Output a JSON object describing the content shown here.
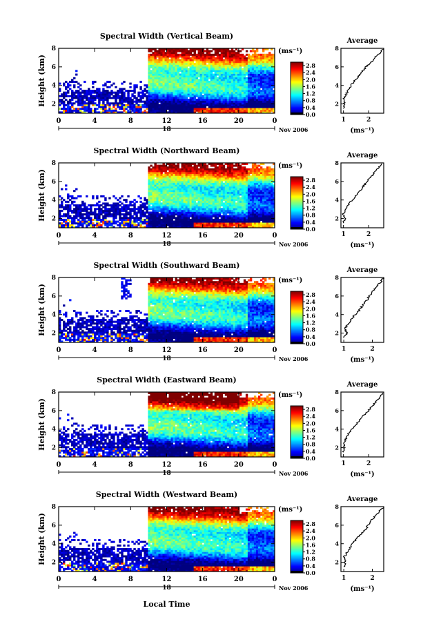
{
  "figure": {
    "colorbar_unit": "(ms⁻¹)",
    "avg_title": "Average",
    "avg_xlabel": "(ms⁻¹)",
    "date_label": "Nov 2006",
    "day_label": "18",
    "xlabel_bottom": "Local Time",
    "ylabel": "Height (km)"
  },
  "chart_data": [
    {
      "type": "heatmap",
      "title": "Spectral Width (Vertical Beam)",
      "ylabel": "Height (km)",
      "x_ticks": [
        "0",
        "4",
        "8",
        "12",
        "16",
        "20",
        "0"
      ],
      "y_ticks": [
        "2",
        "4",
        "6",
        "8"
      ],
      "xlim": [
        0,
        24
      ],
      "ylim": [
        1,
        8
      ],
      "colorbar_ticks": [
        "0.0",
        "0.4",
        "0.8",
        "1.2",
        "1.6",
        "2.0",
        "2.4",
        "2.8"
      ],
      "colorbar_range": [
        0,
        3
      ],
      "average_profile": {
        "title": "Average",
        "xlabel": "(ms⁻¹)",
        "xticks": [
          "1",
          "2"
        ],
        "xlim": [
          0.9,
          2.6
        ],
        "height": [
          1.5,
          2,
          2.5,
          3,
          3.5,
          4,
          4.5,
          5,
          5.5,
          6,
          6.5,
          7,
          7.5,
          8
        ],
        "width": [
          1.0,
          1.05,
          1.0,
          1.1,
          1.2,
          1.3,
          1.45,
          1.6,
          1.75,
          1.9,
          2.1,
          2.25,
          2.45,
          2.6
        ]
      }
    },
    {
      "type": "heatmap",
      "title": "Spectral Width (Northward Beam)",
      "ylabel": "Height (km)",
      "x_ticks": [
        "0",
        "4",
        "8",
        "12",
        "16",
        "20",
        "0"
      ],
      "y_ticks": [
        "2",
        "4",
        "6",
        "8"
      ],
      "xlim": [
        0,
        24
      ],
      "ylim": [
        1,
        8
      ],
      "colorbar_ticks": [
        "0.0",
        "0.4",
        "0.8",
        "1.2",
        "1.6",
        "2.0",
        "2.4",
        "2.8"
      ],
      "colorbar_range": [
        0,
        3
      ],
      "average_profile": {
        "title": "Average",
        "xlabel": "(ms⁻¹)",
        "xticks": [
          "1",
          "2"
        ],
        "xlim": [
          0.9,
          2.6
        ],
        "height": [
          1.5,
          2,
          2.5,
          3,
          3.5,
          4,
          4.5,
          5,
          5.5,
          6,
          6.5,
          7,
          7.5,
          8
        ],
        "width": [
          1.0,
          1.05,
          1.0,
          1.1,
          1.2,
          1.35,
          1.5,
          1.65,
          1.8,
          1.95,
          2.1,
          2.25,
          2.4,
          2.55
        ]
      }
    },
    {
      "type": "heatmap",
      "title": "Spectral Width (Southward Beam)",
      "ylabel": "Height (km)",
      "x_ticks": [
        "0",
        "4",
        "8",
        "12",
        "16",
        "20",
        "0"
      ],
      "y_ticks": [
        "2",
        "4",
        "6",
        "8"
      ],
      "xlim": [
        0,
        24
      ],
      "ylim": [
        1,
        8
      ],
      "colorbar_ticks": [
        "0.0",
        "0.4",
        "0.8",
        "1.2",
        "1.6",
        "2.0",
        "2.4",
        "2.8"
      ],
      "colorbar_range": [
        0,
        3
      ],
      "average_profile": {
        "title": "Average",
        "xlabel": "(ms⁻¹)",
        "xticks": [
          "1",
          "2"
        ],
        "xlim": [
          0.9,
          2.4
        ],
        "height": [
          1.5,
          2,
          2.5,
          3,
          3.5,
          4,
          4.5,
          5,
          5.5,
          6,
          6.5,
          7,
          7.5,
          8
        ],
        "width": [
          1.0,
          1.1,
          1.05,
          1.15,
          1.25,
          1.4,
          1.55,
          1.65,
          1.8,
          1.9,
          2.0,
          2.15,
          2.3,
          2.4
        ]
      }
    },
    {
      "type": "heatmap",
      "title": "Spectral Width (Eastward Beam)",
      "ylabel": "Height (km)",
      "x_ticks": [
        "0",
        "4",
        "8",
        "12",
        "16",
        "20",
        "0"
      ],
      "y_ticks": [
        "2",
        "4",
        "6",
        "8"
      ],
      "xlim": [
        0,
        24
      ],
      "ylim": [
        1,
        8
      ],
      "colorbar_ticks": [
        "0.0",
        "0.4",
        "0.8",
        "1.2",
        "1.6",
        "2.0",
        "2.4",
        "2.8"
      ],
      "colorbar_range": [
        0,
        3
      ],
      "average_profile": {
        "title": "Average",
        "xlabel": "(ms⁻¹)",
        "xticks": [
          "1",
          "2"
        ],
        "xlim": [
          0.9,
          2.6
        ],
        "height": [
          1.5,
          2,
          2.5,
          3,
          3.5,
          4,
          4.5,
          5,
          5.5,
          6,
          6.5,
          7,
          7.5,
          8
        ],
        "width": [
          1.0,
          1.05,
          1.0,
          1.1,
          1.2,
          1.35,
          1.5,
          1.65,
          1.8,
          2.0,
          2.15,
          2.3,
          2.45,
          2.6
        ]
      }
    },
    {
      "type": "heatmap",
      "title": "Spectral Width (Westward Beam)",
      "ylabel": "Height (km)",
      "x_ticks": [
        "0",
        "4",
        "8",
        "12",
        "16",
        "20",
        "0"
      ],
      "y_ticks": [
        "2",
        "4",
        "6",
        "8"
      ],
      "xlim": [
        0,
        24
      ],
      "ylim": [
        1,
        8
      ],
      "colorbar_ticks": [
        "0.0",
        "0.4",
        "0.8",
        "1.2",
        "1.6",
        "2.0",
        "2.4",
        "2.8"
      ],
      "colorbar_range": [
        0,
        3
      ],
      "average_profile": {
        "title": "Average",
        "xlabel": "(ms⁻¹)",
        "xticks": [
          "1",
          "2"
        ],
        "xlim": [
          0.9,
          2.4
        ],
        "height": [
          1.5,
          2,
          2.5,
          3,
          3.5,
          4,
          4.5,
          5,
          5.5,
          6,
          6.5,
          7,
          7.5,
          8
        ],
        "width": [
          1.0,
          1.05,
          1.0,
          1.1,
          1.2,
          1.3,
          1.45,
          1.6,
          1.75,
          1.85,
          1.95,
          2.1,
          2.25,
          2.4
        ]
      }
    }
  ]
}
